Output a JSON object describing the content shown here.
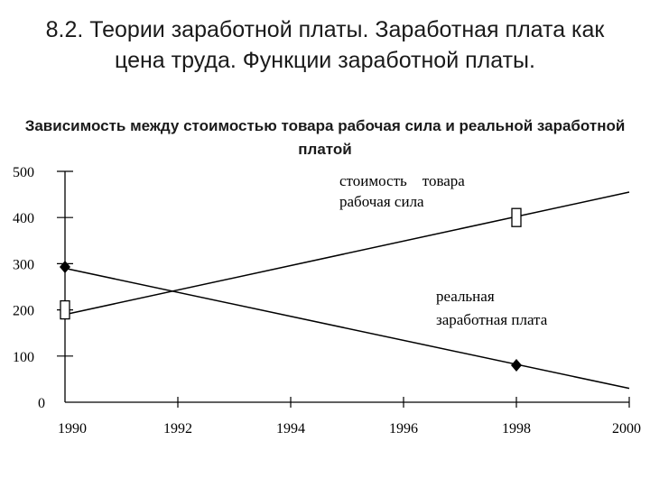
{
  "title": "8.2. Теории заработной платы. Заработная плата как цена труда. Функции заработной платы.",
  "chart_data": {
    "type": "line",
    "title": "Зависимость между стоимостью товара рабочая сила и реальной заработной платой",
    "xlabel": "",
    "ylabel": "",
    "x_ticks": [
      "1990",
      "1992",
      "1994",
      "1996",
      "1998",
      "2000"
    ],
    "y_ticks": [
      "0",
      "100",
      "200",
      "300",
      "400",
      "500"
    ],
    "xlim": [
      1990,
      2000
    ],
    "ylim": [
      0,
      500
    ],
    "grid": false,
    "series": [
      {
        "label_lines": [
          "стоимость    товара",
          "рабочая сила"
        ],
        "marker": "square",
        "color": "#000000",
        "points": [
          {
            "x": 1990,
            "y": 190
          },
          {
            "x": 2000,
            "y": 455
          }
        ],
        "marked_points": [
          {
            "x": 1990,
            "y": 200
          },
          {
            "x": 1998,
            "y": 400
          }
        ]
      },
      {
        "label_lines": [
          "реальная",
          "заработная плата"
        ],
        "marker": "diamond",
        "color": "#000000",
        "points": [
          {
            "x": 1990,
            "y": 290
          },
          {
            "x": 2000,
            "y": 30
          }
        ],
        "marked_points": [
          {
            "x": 1990,
            "y": 293
          },
          {
            "x": 1998,
            "y": 80
          }
        ]
      }
    ]
  }
}
